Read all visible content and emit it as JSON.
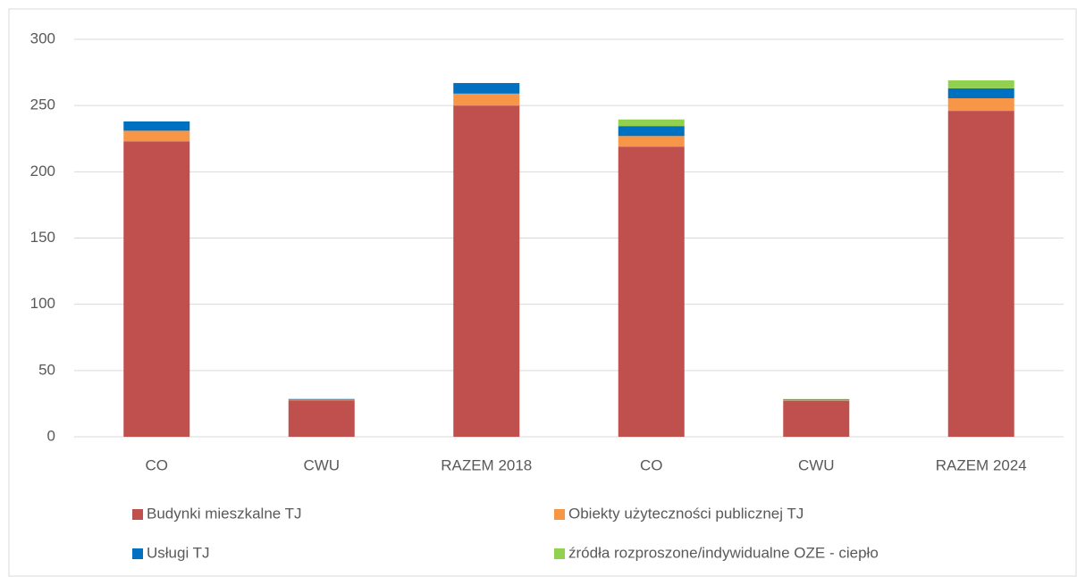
{
  "chart_data": {
    "type": "stacked_bar",
    "categories": [
      "CO",
      "CWU",
      "RAZEM 2018",
      "CO",
      "CWU",
      "RAZEM 2024"
    ],
    "series": [
      {
        "name": "Budynki mieszkalne TJ",
        "color": "#c0504d",
        "values": [
          223,
          27.5,
          250,
          219,
          27,
          246
        ]
      },
      {
        "name": "Obiekty użyteczności publicznej TJ",
        "color": "#f79646",
        "values": [
          8,
          0.5,
          9,
          8,
          0.5,
          9.5
        ]
      },
      {
        "name": "Usługi TJ",
        "color": "#0070c0",
        "values": [
          7,
          0.5,
          8,
          7.5,
          0.5,
          7.5
        ]
      },
      {
        "name": "źródła rozproszone/indywidualne OZE - ciepło",
        "color": "#92d050",
        "values": [
          0,
          0,
          0,
          5,
          0.5,
          6
        ]
      }
    ],
    "ylim": [
      0,
      300
    ],
    "yticks": [
      0,
      50,
      100,
      150,
      200,
      250,
      300
    ],
    "grid": true
  }
}
